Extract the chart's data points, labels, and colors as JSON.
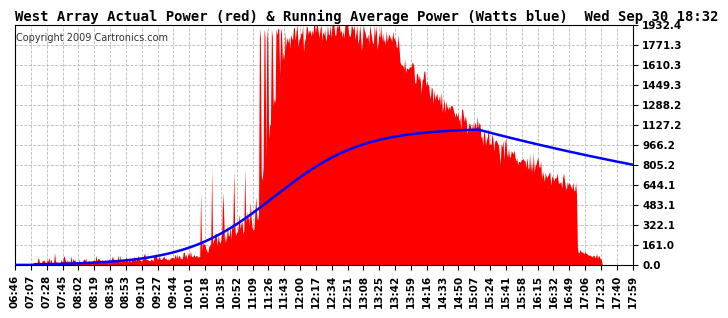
{
  "title": "West Array Actual Power (red) & Running Average Power (Watts blue)  Wed Sep 30 18:32",
  "copyright": "Copyright 2009 Cartronics.com",
  "ymax": 1932.4,
  "ymin": 0.0,
  "yticks": [
    0.0,
    161.0,
    322.1,
    483.1,
    644.1,
    805.2,
    966.2,
    1127.2,
    1288.2,
    1449.3,
    1610.3,
    1771.3,
    1932.4
  ],
  "ytick_labels": [
    "0.0",
    "161.0",
    "322.1",
    "483.1",
    "644.1",
    "805.2",
    "966.2",
    "1127.2",
    "1288.2",
    "1449.3",
    "1610.3",
    "1771.3",
    "1932.4"
  ],
  "xtick_labels": [
    "06:46",
    "07:07",
    "07:28",
    "07:45",
    "08:02",
    "08:19",
    "08:36",
    "08:53",
    "09:10",
    "09:27",
    "09:44",
    "10:01",
    "10:18",
    "10:35",
    "10:52",
    "11:09",
    "11:26",
    "11:43",
    "12:00",
    "12:17",
    "12:34",
    "12:51",
    "13:08",
    "13:25",
    "13:42",
    "13:59",
    "14:16",
    "14:33",
    "14:50",
    "15:07",
    "15:24",
    "15:41",
    "15:58",
    "16:15",
    "16:32",
    "16:49",
    "17:06",
    "17:23",
    "17:40",
    "17:59"
  ],
  "bg_color": "#ffffff",
  "title_color": "#000000",
  "red_color": "#ff0000",
  "blue_color": "#0000ff",
  "grid_color": "#bbbbbb",
  "title_fontsize": 10,
  "copyright_fontsize": 7,
  "tick_fontsize": 7.5
}
